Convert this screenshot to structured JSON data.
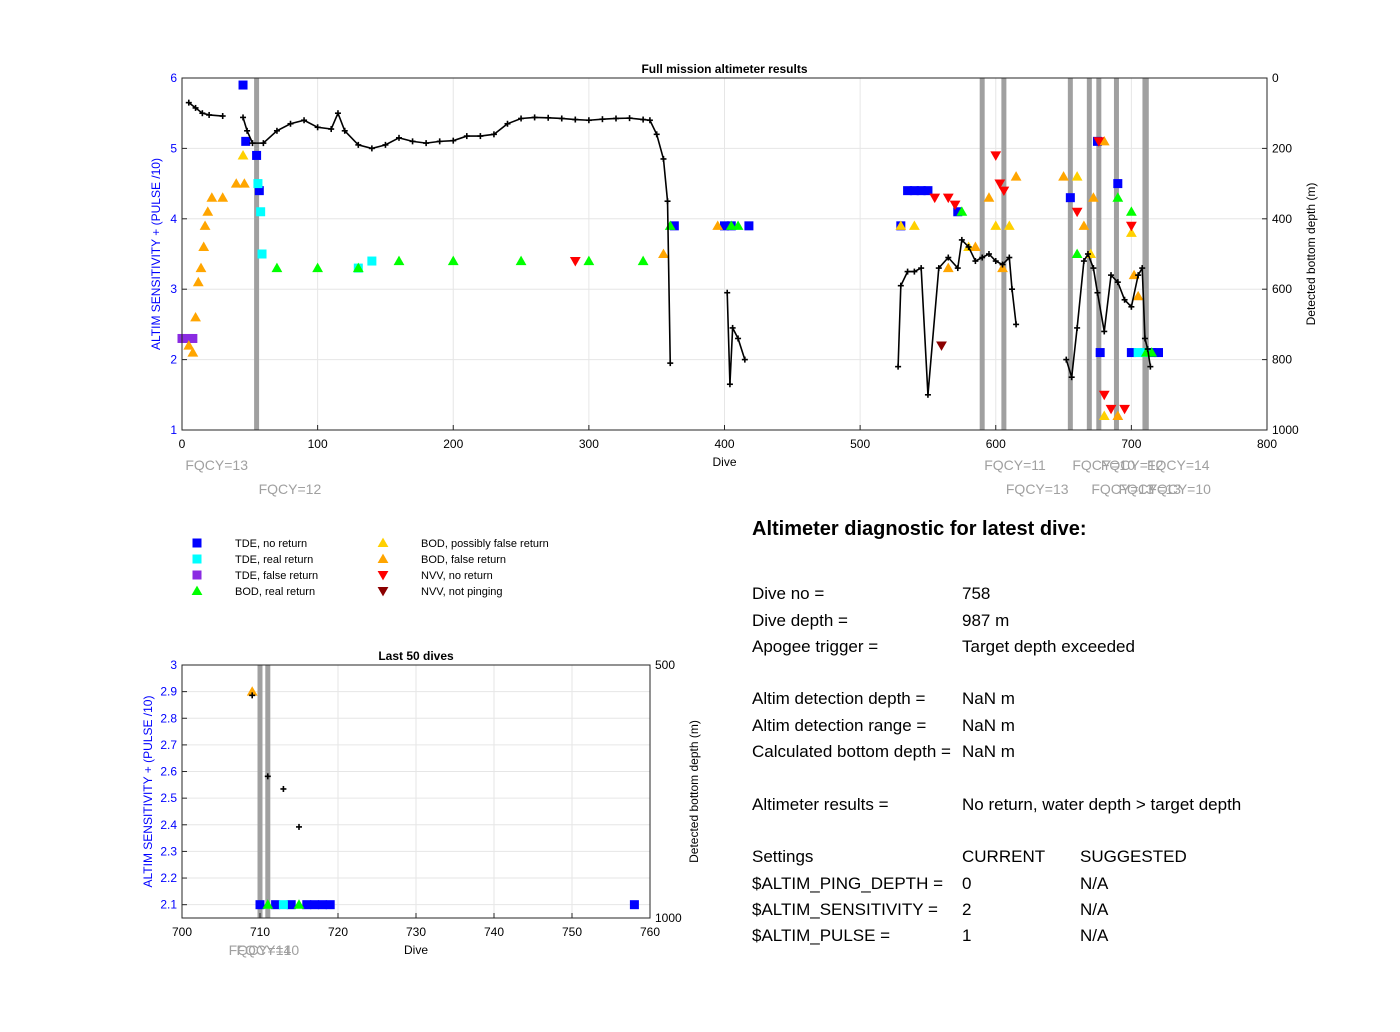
{
  "colors": {
    "tde_no_return": "#0000ff",
    "tde_real_return": "#00ffff",
    "tde_false_return": "#8a2be2",
    "bod_real_return": "#00ff00",
    "bod_possibly_false": "#ffd000",
    "bod_false": "#ffa500",
    "nvv_no_return": "#ff0000",
    "nvv_not_pinging": "#8b0000",
    "depth": "#000000",
    "fqcy_line": "#a0a0a0"
  },
  "legend": {
    "items": [
      {
        "label": "TDE, no return",
        "marker": "square",
        "color": "#0000ff"
      },
      {
        "label": "TDE, real return",
        "marker": "square",
        "color": "#00ffff"
      },
      {
        "label": "TDE, false return",
        "marker": "square",
        "color": "#8a2be2"
      },
      {
        "label": "BOD, real return",
        "marker": "triangle-up",
        "color": "#00ff00"
      },
      {
        "label": "BOD, possibly false return",
        "marker": "triangle-up",
        "color": "#ffd000"
      },
      {
        "label": "BOD, false return",
        "marker": "triangle-up",
        "color": "#ffa500"
      },
      {
        "label": "NVV, no return",
        "marker": "triangle-down",
        "color": "#ff0000"
      },
      {
        "label": "NVV, not pinging",
        "marker": "triangle-down",
        "color": "#8b0000"
      }
    ]
  },
  "chart_data": [
    {
      "type": "scatter",
      "title": "Full mission altimeter results",
      "xlabel": "Dive",
      "ylabel": "ALTIM SENSITIVITY + (PULSE /10)",
      "y2label": "Detected bottom depth (m)",
      "xlim": [
        0,
        800
      ],
      "ylim": [
        1,
        6
      ],
      "y2lim": [
        1000,
        0
      ],
      "xticks": [
        0,
        100,
        200,
        300,
        400,
        500,
        600,
        700,
        800
      ],
      "yticks": [
        1,
        2,
        3,
        4,
        5,
        6
      ],
      "y2ticks": [
        0,
        200,
        400,
        600,
        800,
        1000
      ],
      "grid": true,
      "fqcy_changes": [
        {
          "dive": 1,
          "label": "FQCY=13"
        },
        {
          "dive": 55,
          "label": "FQCY=12"
        },
        {
          "dive": 590,
          "label": "FQCY=11"
        },
        {
          "dive": 606,
          "label": "FQCY=13"
        },
        {
          "dive": 655,
          "label": "FQCY=10"
        },
        {
          "dive": 669,
          "label": "FQCY=13"
        },
        {
          "dive": 676,
          "label": "FQCY=12"
        },
        {
          "dive": 689,
          "label": "FQCY=13"
        },
        {
          "dive": 710,
          "label": "FQCY=14"
        },
        {
          "dive": 711,
          "label": "FQCY=10"
        }
      ],
      "series": [
        {
          "name": "TDE, no return",
          "points": [
            [
              45,
              5.9
            ],
            [
              47,
              5.1
            ],
            [
              55,
              4.9
            ],
            [
              57,
              4.4
            ],
            [
              535,
              4.4
            ],
            [
              540,
              4.4
            ],
            [
              545,
              4.4
            ],
            [
              550,
              4.4
            ],
            [
              363,
              3.9
            ],
            [
              400,
              3.9
            ],
            [
              405,
              3.9
            ],
            [
              418,
              3.9
            ],
            [
              530,
              3.9
            ],
            [
              655,
              4.3
            ],
            [
              690,
              4.5
            ],
            [
              677,
              2.1
            ],
            [
              700,
              2.1
            ],
            [
              715,
              2.1
            ],
            [
              720,
              2.1
            ],
            [
              675,
              5.1
            ],
            [
              572,
              4.1
            ]
          ]
        },
        {
          "name": "TDE, real return",
          "points": [
            [
              56,
              4.5
            ],
            [
              58,
              4.1
            ],
            [
              59,
              3.5
            ],
            [
              130,
              3.3
            ],
            [
              140,
              3.4
            ],
            [
              705,
              2.1
            ],
            [
              710,
              2.1
            ]
          ]
        },
        {
          "name": "TDE, false return",
          "points": [
            [
              0,
              2.3
            ],
            [
              5,
              2.3
            ],
            [
              8,
              2.3
            ]
          ]
        },
        {
          "name": "BOD, real return",
          "points": [
            [
              70,
              3.3
            ],
            [
              100,
              3.3
            ],
            [
              130,
              3.3
            ],
            [
              160,
              3.4
            ],
            [
              200,
              3.4
            ],
            [
              250,
              3.4
            ],
            [
              300,
              3.4
            ],
            [
              340,
              3.4
            ],
            [
              360,
              3.9
            ],
            [
              405,
              3.9
            ],
            [
              410,
              3.9
            ],
            [
              575,
              4.1
            ],
            [
              660,
              3.5
            ],
            [
              690,
              4.3
            ],
            [
              700,
              4.1
            ],
            [
              711,
              2.1
            ],
            [
              715,
              2.1
            ]
          ]
        },
        {
          "name": "BOD, possibly false return",
          "points": [
            [
              45,
              4.9
            ],
            [
              530,
              3.9
            ],
            [
              540,
              3.9
            ],
            [
              580,
              3.6
            ],
            [
              600,
              3.9
            ],
            [
              610,
              3.9
            ],
            [
              660,
              4.6
            ],
            [
              670,
              3.5
            ],
            [
              680,
              1.2
            ],
            [
              700,
              3.8
            ]
          ]
        },
        {
          "name": "BOD, false return",
          "points": [
            [
              5,
              2.2
            ],
            [
              8,
              2.1
            ],
            [
              10,
              2.6
            ],
            [
              12,
              3.1
            ],
            [
              14,
              3.3
            ],
            [
              16,
              3.6
            ],
            [
              17,
              3.9
            ],
            [
              19,
              4.1
            ],
            [
              22,
              4.3
            ],
            [
              30,
              4.3
            ],
            [
              40,
              4.5
            ],
            [
              46,
              4.5
            ],
            [
              355,
              3.5
            ],
            [
              395,
              3.9
            ],
            [
              565,
              3.3
            ],
            [
              585,
              3.6
            ],
            [
              595,
              4.3
            ],
            [
              605,
              3.3
            ],
            [
              615,
              4.6
            ],
            [
              650,
              4.6
            ],
            [
              665,
              3.9
            ],
            [
              672,
              4.3
            ],
            [
              680,
              5.1
            ],
            [
              690,
              1.2
            ],
            [
              702,
              3.2
            ],
            [
              705,
              2.9
            ]
          ]
        },
        {
          "name": "NVV, no return",
          "points": [
            [
              290,
              3.4
            ],
            [
              555,
              4.3
            ],
            [
              565,
              4.3
            ],
            [
              570,
              4.2
            ],
            [
              600,
              4.9
            ],
            [
              603,
              4.5
            ],
            [
              606,
              4.4
            ],
            [
              660,
              4.1
            ],
            [
              676,
              5.1
            ],
            [
              680,
              1.5
            ],
            [
              685,
              1.3
            ],
            [
              695,
              1.3
            ],
            [
              700,
              3.9
            ]
          ]
        },
        {
          "name": "NVV, not pinging",
          "points": [
            [
              560,
              2.2
            ]
          ]
        },
        {
          "name": "Detected bottom depth",
          "points": [
            [
              5,
              70
            ],
            [
              10,
              85
            ],
            [
              15,
              100
            ],
            [
              20,
              105
            ],
            [
              30,
              108
            ],
            [
              45,
              112
            ],
            [
              48,
              150
            ],
            [
              52,
              185
            ],
            [
              60,
              185
            ],
            [
              70,
              150
            ],
            [
              80,
              130
            ],
            [
              90,
              120
            ],
            [
              100,
              140
            ],
            [
              110,
              145
            ],
            [
              115,
              100
            ],
            [
              120,
              150
            ],
            [
              130,
              190
            ],
            [
              140,
              200
            ],
            [
              150,
              190
            ],
            [
              160,
              170
            ],
            [
              170,
              180
            ],
            [
              180,
              185
            ],
            [
              190,
              180
            ],
            [
              200,
              178
            ],
            [
              210,
              165
            ],
            [
              220,
              165
            ],
            [
              230,
              160
            ],
            [
              240,
              130
            ],
            [
              250,
              115
            ],
            [
              260,
              112
            ],
            [
              270,
              113
            ],
            [
              280,
              115
            ],
            [
              290,
              118
            ],
            [
              300,
              120
            ],
            [
              310,
              117
            ],
            [
              320,
              115
            ],
            [
              330,
              114
            ],
            [
              340,
              118
            ],
            [
              345,
              120
            ],
            [
              350,
              160
            ],
            [
              355,
              230
            ],
            [
              358,
              350
            ],
            [
              360,
              810
            ],
            [
              402,
              610
            ],
            [
              404,
              870
            ],
            [
              406,
              710
            ],
            [
              410,
              740
            ],
            [
              415,
              800
            ],
            [
              528,
              820
            ],
            [
              530,
              590
            ],
            [
              535,
              550
            ],
            [
              540,
              550
            ],
            [
              545,
              540
            ],
            [
              550,
              900
            ],
            [
              558,
              540
            ],
            [
              565,
              510
            ],
            [
              572,
              540
            ],
            [
              575,
              460
            ],
            [
              580,
              480
            ],
            [
              585,
              520
            ],
            [
              590,
              510
            ],
            [
              595,
              500
            ],
            [
              600,
              520
            ],
            [
              605,
              530
            ],
            [
              610,
              510
            ],
            [
              612,
              600
            ],
            [
              615,
              700
            ],
            [
              652,
              800
            ],
            [
              656,
              850
            ],
            [
              660,
              710
            ],
            [
              665,
              520
            ],
            [
              668,
              500
            ],
            [
              672,
              540
            ],
            [
              675,
              610
            ],
            [
              680,
              720
            ],
            [
              685,
              560
            ],
            [
              690,
              580
            ],
            [
              695,
              630
            ],
            [
              700,
              650
            ],
            [
              705,
              560
            ],
            [
              708,
              540
            ],
            [
              710,
              740
            ],
            [
              712,
              770
            ],
            [
              714,
              820
            ]
          ]
        }
      ]
    },
    {
      "type": "scatter",
      "title": "Last 50 dives",
      "xlabel": "Dive",
      "ylabel": "ALTIM SENSITIVITY + (PULSE /10)",
      "y2label": "Detected bottom depth (m)",
      "xlim": [
        700,
        760
      ],
      "ylim": [
        2.05,
        3
      ],
      "y2lim": [
        1000,
        500
      ],
      "xticks": [
        700,
        710,
        720,
        730,
        740,
        750,
        760
      ],
      "yticks": [
        2.1,
        2.2,
        2.3,
        2.4,
        2.5,
        2.6,
        2.7,
        2.8,
        2.9,
        3
      ],
      "y2ticks": [
        500,
        1000
      ],
      "grid": true,
      "fqcy_changes": [
        {
          "dive": 710,
          "label": "FQCY=14"
        },
        {
          "dive": 711,
          "label": "FQCY=10"
        }
      ],
      "series": [
        {
          "name": "TDE, no return",
          "points": [
            [
              710,
              2.1
            ],
            [
              712,
              2.1
            ],
            [
              714,
              2.1
            ],
            [
              716,
              2.1
            ],
            [
              717,
              2.1
            ],
            [
              718,
              2.1
            ],
            [
              719,
              2.1
            ],
            [
              758,
              2.1
            ]
          ]
        },
        {
          "name": "TDE, real return",
          "points": [
            [
              713,
              2.1
            ]
          ]
        },
        {
          "name": "BOD, real return",
          "points": [
            [
              711,
              2.1
            ],
            [
              715,
              2.1
            ]
          ]
        },
        {
          "name": "BOD, false return",
          "points": [
            [
              709,
              2.9
            ]
          ]
        },
        {
          "name": "Detected bottom depth",
          "points": [
            [
              709,
              560
            ],
            [
              711,
              720
            ],
            [
              713,
              745
            ],
            [
              715,
              820
            ]
          ]
        }
      ]
    }
  ],
  "diagnostic": {
    "title": "Altimeter diagnostic for latest dive:",
    "dive_no_label": "Dive no =",
    "dive_no": "758",
    "dive_depth_label": "Dive depth =",
    "dive_depth": "987 m",
    "apogee_label": "Apogee trigger =",
    "apogee": "Target depth exceeded",
    "altim_det_depth_label": "Altim detection depth =",
    "altim_det_depth": "NaN m",
    "altim_det_range_label": "Altim detection range =",
    "altim_det_range": "NaN m",
    "calc_bottom_label": "Calculated bottom depth =",
    "calc_bottom": "NaN m",
    "results_label": "Altimeter results =",
    "results": "No return, water depth > target depth",
    "settings_label": "Settings",
    "current_label": "CURRENT",
    "suggested_label": "SUGGESTED",
    "settings": [
      {
        "name": "$ALTIM_PING_DEPTH =",
        "current": "0",
        "suggested": "N/A"
      },
      {
        "name": "$ALTIM_SENSITIVITY =",
        "current": "2",
        "suggested": "N/A"
      },
      {
        "name": "$ALTIM_PULSE =",
        "current": "1",
        "suggested": "N/A"
      }
    ]
  }
}
